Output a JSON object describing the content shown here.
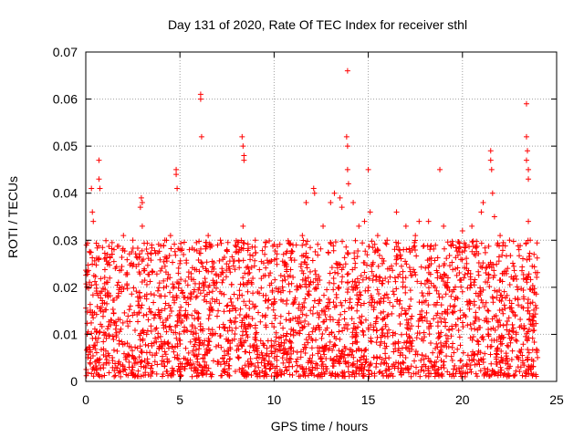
{
  "chart_data": {
    "type": "scatter",
    "title": "Day 131 of 2020, Rate Of TEC Index for receiver sthl",
    "xlabel": "GPS time / hours",
    "ylabel": "ROTI / TECUs",
    "xlim": [
      0,
      25
    ],
    "ylim": [
      0,
      0.07
    ],
    "grid": true,
    "marker": "+",
    "x_ticks": [
      0,
      5,
      10,
      15,
      20,
      25
    ],
    "y_ticks": [
      0,
      0.01,
      0.02,
      0.03,
      0.04,
      0.05,
      0.06,
      0.07
    ],
    "x_tick_labels": [
      "0",
      "5",
      "10",
      "15",
      "20",
      "25"
    ],
    "y_tick_labels": [
      "0",
      "0.01",
      "0.02",
      "0.03",
      "0.04",
      "0.05",
      "0.06",
      "0.07"
    ],
    "series_color": "#ff0000",
    "series": [
      {
        "name": "ROTI",
        "dense_band": {
          "x_range": [
            0,
            24
          ],
          "y_range": [
            0.001,
            0.03
          ],
          "count": 2800
        },
        "points": [
          [
            0.3,
            0.041
          ],
          [
            0.35,
            0.036
          ],
          [
            0.4,
            0.034
          ],
          [
            0.7,
            0.047
          ],
          [
            0.7,
            0.043
          ],
          [
            0.75,
            0.041
          ],
          [
            1.0,
            0.026
          ],
          [
            1.5,
            0.028
          ],
          [
            2.0,
            0.031
          ],
          [
            2.5,
            0.03
          ],
          [
            2.9,
            0.037
          ],
          [
            2.95,
            0.039
          ],
          [
            3.0,
            0.038
          ],
          [
            3.0,
            0.033
          ],
          [
            3.5,
            0.029
          ],
          [
            4.2,
            0.03
          ],
          [
            4.5,
            0.031
          ],
          [
            4.8,
            0.045
          ],
          [
            4.8,
            0.044
          ],
          [
            4.85,
            0.041
          ],
          [
            5.5,
            0.028
          ],
          [
            6.1,
            0.061
          ],
          [
            6.1,
            0.06
          ],
          [
            6.15,
            0.052
          ],
          [
            6.5,
            0.031
          ],
          [
            7.0,
            0.029
          ],
          [
            7.5,
            0.028
          ],
          [
            8.3,
            0.052
          ],
          [
            8.35,
            0.05
          ],
          [
            8.4,
            0.048
          ],
          [
            8.4,
            0.047
          ],
          [
            8.35,
            0.033
          ],
          [
            9.0,
            0.03
          ],
          [
            9.5,
            0.027
          ],
          [
            10.5,
            0.027
          ],
          [
            11.0,
            0.029
          ],
          [
            11.5,
            0.031
          ],
          [
            11.7,
            0.038
          ],
          [
            12.1,
            0.041
          ],
          [
            12.15,
            0.04
          ],
          [
            12.6,
            0.033
          ],
          [
            13.0,
            0.038
          ],
          [
            13.2,
            0.04
          ],
          [
            13.5,
            0.039
          ],
          [
            13.6,
            0.037
          ],
          [
            13.9,
            0.066
          ],
          [
            13.85,
            0.052
          ],
          [
            13.9,
            0.05
          ],
          [
            13.9,
            0.045
          ],
          [
            13.95,
            0.042
          ],
          [
            14.2,
            0.038
          ],
          [
            14.5,
            0.033
          ],
          [
            14.8,
            0.034
          ],
          [
            15.0,
            0.045
          ],
          [
            15.1,
            0.036
          ],
          [
            15.5,
            0.031
          ],
          [
            16.0,
            0.03
          ],
          [
            16.5,
            0.036
          ],
          [
            17.0,
            0.033
          ],
          [
            17.5,
            0.031
          ],
          [
            17.7,
            0.034
          ],
          [
            18.2,
            0.034
          ],
          [
            18.8,
            0.045
          ],
          [
            19.0,
            0.033
          ],
          [
            19.5,
            0.029
          ],
          [
            20.0,
            0.032
          ],
          [
            20.5,
            0.033
          ],
          [
            21.0,
            0.036
          ],
          [
            21.1,
            0.038
          ],
          [
            21.5,
            0.049
          ],
          [
            21.5,
            0.047
          ],
          [
            21.55,
            0.045
          ],
          [
            21.6,
            0.04
          ],
          [
            21.7,
            0.035
          ],
          [
            22.0,
            0.031
          ],
          [
            22.5,
            0.03
          ],
          [
            23.0,
            0.028
          ],
          [
            23.4,
            0.059
          ],
          [
            23.4,
            0.052
          ],
          [
            23.45,
            0.049
          ],
          [
            23.4,
            0.047
          ],
          [
            23.5,
            0.045
          ],
          [
            23.5,
            0.043
          ],
          [
            23.5,
            0.034
          ],
          [
            23.6,
            0.03
          ],
          [
            23.8,
            0.027
          ]
        ]
      }
    ]
  }
}
